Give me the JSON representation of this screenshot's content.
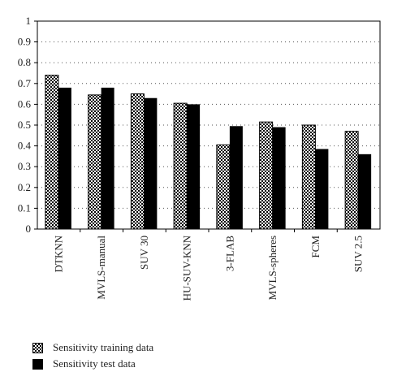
{
  "chart_data": {
    "type": "bar",
    "categories": [
      "DTKNN",
      "MVLS-manual",
      "SUV 30",
      "HU-SUV-KNN",
      "3-FLAB",
      "MVLS-spheres",
      "FCM",
      "SUV 2.5"
    ],
    "series": [
      {
        "name": "Sensitivity training data",
        "values": [
          0.74,
          0.645,
          0.65,
          0.605,
          0.405,
          0.515,
          0.5,
          0.47
        ],
        "pattern": "checkerboard"
      },
      {
        "name": "Sensitivity test data",
        "values": [
          0.68,
          0.68,
          0.63,
          0.6,
          0.495,
          0.49,
          0.385,
          0.36
        ],
        "color": "#000000"
      }
    ],
    "yticks": [
      "0",
      "0.1",
      "0.2",
      "0.3",
      "0.4",
      "0.5",
      "0.6",
      "0.7",
      "0.8",
      "0.9",
      "1"
    ],
    "ylim": [
      0,
      1
    ],
    "grid": "dotted horizontal",
    "legend_position": "bottom-left"
  }
}
